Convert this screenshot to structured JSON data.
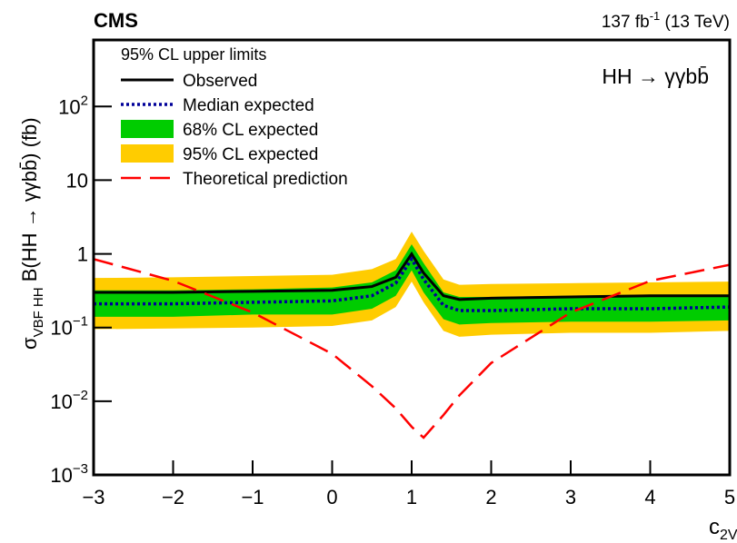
{
  "chart_data": {
    "type": "line",
    "experiment": "CMS",
    "lumi": {
      "text": "137 fb",
      "sup": "-1",
      "rest": " (13 TeV)"
    },
    "process": "HH → γγbb̄",
    "legend_title": "95% CL upper limits",
    "legend_position": "upper left",
    "x_label": {
      "text": "c",
      "sub": "2V"
    },
    "y_label": {
      "text": "σ",
      "sub": "VBF HH",
      "rest": " B(HH → γγbb̄) (fb)"
    },
    "log_y": true,
    "xlim": [
      -3,
      5
    ],
    "ylim": [
      0.001,
      800
    ],
    "xticks": [
      {
        "value": -3,
        "label": "−3"
      },
      {
        "value": -2,
        "label": "−2"
      },
      {
        "value": -1,
        "label": "−1"
      },
      0,
      1,
      2,
      3,
      4,
      5
    ],
    "yticks": [
      {
        "value": 0.001,
        "label": "10",
        "exponent": "−3"
      },
      {
        "value": 0.01,
        "label": "10",
        "exponent": "−2"
      },
      {
        "value": 0.1,
        "label": "10",
        "exponent": "−1"
      },
      1,
      10,
      {
        "value": 100,
        "label": "10",
        "exponent": "2"
      }
    ],
    "x": [
      -3,
      -2,
      -1,
      0,
      0.5,
      0.8,
      1,
      1.15,
      1.4,
      1.6,
      2,
      3,
      4,
      5
    ],
    "series": [
      {
        "name": "Observed",
        "kind": "line",
        "style": "solid",
        "color": "#000000",
        "values": [
          0.3,
          0.3,
          0.31,
          0.32,
          0.36,
          0.48,
          1.0,
          0.55,
          0.27,
          0.24,
          0.25,
          0.26,
          0.27,
          0.27
        ]
      },
      {
        "name": "Median expected",
        "kind": "line",
        "style": "dotted",
        "color": "#000099",
        "values": [
          0.21,
          0.21,
          0.22,
          0.23,
          0.27,
          0.4,
          0.85,
          0.45,
          0.2,
          0.17,
          0.17,
          0.18,
          0.18,
          0.19
        ]
      },
      {
        "name": "68% CL expected",
        "kind": "band",
        "color": "#00cc00",
        "low": [
          0.14,
          0.14,
          0.15,
          0.15,
          0.18,
          0.27,
          0.6,
          0.3,
          0.13,
          0.11,
          0.115,
          0.12,
          0.12,
          0.125
        ],
        "high": [
          0.32,
          0.32,
          0.33,
          0.35,
          0.41,
          0.6,
          1.35,
          0.75,
          0.3,
          0.26,
          0.26,
          0.27,
          0.28,
          0.28
        ]
      },
      {
        "name": "95% CL expected",
        "kind": "band",
        "color": "#ffcc00",
        "low": [
          0.095,
          0.097,
          0.1,
          0.105,
          0.125,
          0.19,
          0.42,
          0.22,
          0.09,
          0.075,
          0.08,
          0.085,
          0.085,
          0.09
        ],
        "high": [
          0.47,
          0.48,
          0.5,
          0.52,
          0.62,
          0.85,
          2.0,
          1.1,
          0.45,
          0.38,
          0.39,
          0.4,
          0.41,
          0.42
        ]
      },
      {
        "name": "Theoretical prediction",
        "kind": "line",
        "style": "dashed",
        "color": "#ff0000",
        "values": [
          0.85,
          0.43,
          0.16,
          0.044,
          0.016,
          0.008,
          0.0045,
          0.0032,
          0.0065,
          0.012,
          0.033,
          0.16,
          0.43,
          0.71
        ]
      }
    ]
  }
}
